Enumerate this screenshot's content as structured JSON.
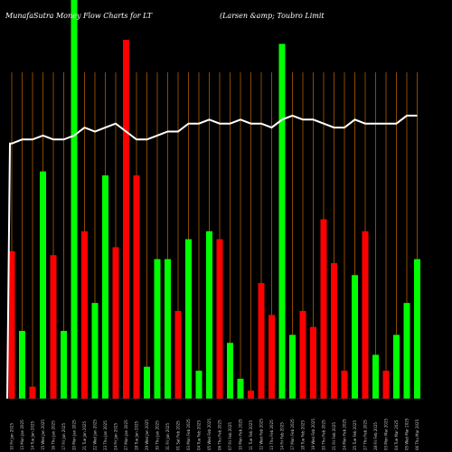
{
  "chart_data": {
    "type": "bar",
    "title_left": "MunafaSutra  Money Flow  Charts for LT",
    "title_right": "(Larsen  &amp;  Toubro  Limit",
    "colors": {
      "up": "#00ff00",
      "down": "#ff0000",
      "line": "#ffffff",
      "grid": "#b05a00",
      "background": "#000000"
    },
    "ylim": [
      0,
      100
    ],
    "categories": [
      "10 Fri Jan 2025",
      "13 Mon Jan 2025",
      "14 Tue Jan 2025",
      "15 Wed Jan 2025",
      "16 Thu Jan 2025",
      "17 Fri Jan 2025",
      "20 Mon Jan 2025",
      "21 Tue Jan 2025",
      "22 Wed Jan 2025",
      "23 Thu Jan 2025",
      "24 Fri Jan 2025",
      "27 Mon Jan 2025",
      "28 Tue Jan 2025",
      "29 Wed Jan 2025",
      "30 Thu Jan 2025",
      "31 Fri Jan 2025",
      "01 Sat Feb 2025",
      "03 Mon Feb 2025",
      "04 Tue Feb 2025",
      "05 Wed Feb 2025",
      "06 Thu Feb 2025",
      "07 Fri Feb 2025",
      "10 Mon Feb 2025",
      "11 Tue Feb 2025",
      "12 Wed Feb 2025",
      "13 Thu Feb 2025",
      "14 Fri Feb 2025",
      "17 Mon Feb 2025",
      "18 Tue Feb 2025",
      "19 Wed Feb 2025",
      "20 Thu Feb 2025",
      "21 Fri Feb 2025",
      "24 Mon Feb 2025",
      "25 Tue Feb 2025",
      "27 Thu Feb 2025",
      "28 Fri Feb 2025",
      "03 Mon Mar 2025",
      "04 Tue Mar 2025",
      "05 Wed Mar 2025",
      "06 Thu Mar 2025"
    ],
    "bars": [
      {
        "value": 37,
        "dir": "down"
      },
      {
        "value": 17,
        "dir": "up"
      },
      {
        "value": 3,
        "dir": "down"
      },
      {
        "value": 57,
        "dir": "up"
      },
      {
        "value": 36,
        "dir": "down"
      },
      {
        "value": 17,
        "dir": "up"
      },
      {
        "value": 100,
        "dir": "up"
      },
      {
        "value": 42,
        "dir": "down"
      },
      {
        "value": 24,
        "dir": "up"
      },
      {
        "value": 56,
        "dir": "up"
      },
      {
        "value": 38,
        "dir": "down"
      },
      {
        "value": 90,
        "dir": "down"
      },
      {
        "value": 56,
        "dir": "down"
      },
      {
        "value": 8,
        "dir": "up"
      },
      {
        "value": 35,
        "dir": "up"
      },
      {
        "value": 35,
        "dir": "up"
      },
      {
        "value": 22,
        "dir": "down"
      },
      {
        "value": 40,
        "dir": "up"
      },
      {
        "value": 7,
        "dir": "up"
      },
      {
        "value": 42,
        "dir": "up"
      },
      {
        "value": 40,
        "dir": "down"
      },
      {
        "value": 14,
        "dir": "up"
      },
      {
        "value": 5,
        "dir": "up"
      },
      {
        "value": 2,
        "dir": "down"
      },
      {
        "value": 29,
        "dir": "down"
      },
      {
        "value": 21,
        "dir": "down"
      },
      {
        "value": 89,
        "dir": "up"
      },
      {
        "value": 16,
        "dir": "up"
      },
      {
        "value": 22,
        "dir": "down"
      },
      {
        "value": 18,
        "dir": "down"
      },
      {
        "value": 45,
        "dir": "down"
      },
      {
        "value": 34,
        "dir": "down"
      },
      {
        "value": 7,
        "dir": "down"
      },
      {
        "value": 31,
        "dir": "up"
      },
      {
        "value": 42,
        "dir": "down"
      },
      {
        "value": 11,
        "dir": "up"
      },
      {
        "value": 7,
        "dir": "down"
      },
      {
        "value": 16,
        "dir": "up"
      },
      {
        "value": 24,
        "dir": "up"
      },
      {
        "value": 35,
        "dir": "up"
      }
    ],
    "line": [
      64,
      65,
      65,
      66,
      65,
      65,
      66,
      68,
      67,
      68,
      69,
      67,
      65,
      65,
      66,
      67,
      67,
      69,
      69,
      70,
      69,
      69,
      70,
      69,
      69,
      68,
      70,
      71,
      70,
      70,
      69,
      68,
      68,
      70,
      69,
      69,
      69,
      69,
      71,
      71
    ],
    "line_start": 5
  }
}
